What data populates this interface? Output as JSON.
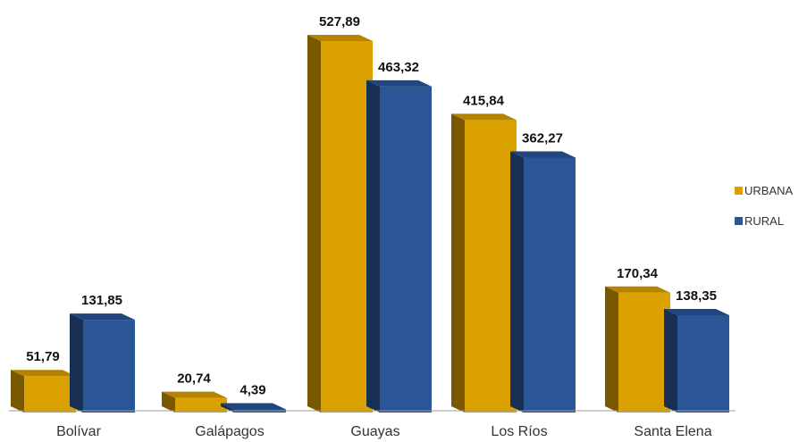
{
  "chart_data": {
    "type": "bar",
    "style": "3d-clustered-column",
    "categories": [
      "Bolívar",
      "Galápagos",
      "Guayas",
      "Los Ríos",
      "Santa Elena"
    ],
    "series": [
      {
        "name": "URBANA",
        "color": "#DBA100",
        "values": [
          51.79,
          20.74,
          527.89,
          415.84,
          170.34
        ],
        "labels": [
          "51,79",
          "20,74",
          "527,89",
          "415,84",
          "170,34"
        ]
      },
      {
        "name": "RURAL",
        "color": "#2A5597",
        "values": [
          131.85,
          4.39,
          463.32,
          362.27,
          138.35
        ],
        "labels": [
          "131,85",
          "4,39",
          "463,32",
          "362,27",
          "138,35"
        ]
      }
    ],
    "ylim": [
      0,
      530
    ],
    "grid": false,
    "legend_position": "right"
  }
}
